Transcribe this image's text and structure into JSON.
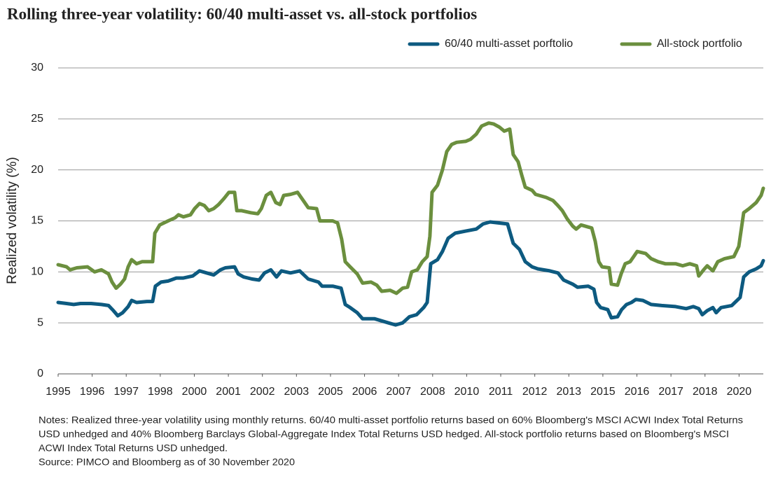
{
  "chart_data": {
    "type": "line",
    "title": "Rolling three-year volatility: 60/40 multi-asset  vs. all-stock portfolios",
    "y_label": "Realized volatility (%)",
    "notes": [
      "Notes: Realized three-year volatility using monthly returns. 60/40 multi-asset portfolio returns  based on 60% Bloomberg's MSCI ACWI Index Total Returns",
      "USD unhedged and 40% Bloomberg Barclays Global-Aggregate Index Total Returns USD hedged.  All-stock portfolio returns based on Bloomberg's MSCI",
      "ACWI Index Total Returns USD unhedged."
    ],
    "source": "Source: PIMCO and Bloomberg as of 30 November 2020",
    "xlim": [
      1995,
      2020.89
    ],
    "xticks": [
      1995,
      {
        "value": 1996.25,
        "label": "1996"
      },
      {
        "value": 1997.5,
        "label": "1997"
      },
      {
        "value": 1998.75,
        "label": "1998"
      },
      2000,
      {
        "value": 2001.25,
        "label": "2001"
      },
      {
        "value": 2002.5,
        "label": "2002"
      },
      {
        "value": 2003.75,
        "label": "2003"
      },
      2005,
      {
        "value": 2006.25,
        "label": "2006"
      },
      {
        "value": 2007.5,
        "label": "2007"
      },
      {
        "value": 2008.75,
        "label": "2008"
      },
      2010,
      {
        "value": 2011.25,
        "label": "2011"
      },
      {
        "value": 2012.5,
        "label": "2012"
      },
      {
        "value": 2013.75,
        "label": "2013"
      },
      2015,
      {
        "value": 2016.25,
        "label": "2016"
      },
      {
        "value": 2017.5,
        "label": "2017"
      },
      {
        "value": 2018.75,
        "label": "2018"
      },
      2020
    ],
    "ylim": [
      0,
      30
    ],
    "yticks": [
      0,
      5,
      10,
      15,
      20,
      25,
      30
    ],
    "grid": true,
    "legend": "top-right",
    "series": [
      {
        "name": "60/40 multi-asset porftolio",
        "color": "#0d5a80",
        "x": [
          1995.0,
          1995.31,
          1995.57,
          1995.82,
          1996.21,
          1996.59,
          1996.85,
          1997.03,
          1997.19,
          1997.37,
          1997.57,
          1997.7,
          1997.88,
          1998.26,
          1998.47,
          1998.57,
          1998.78,
          1999.04,
          1999.34,
          1999.6,
          1999.94,
          2000.19,
          2000.45,
          2000.71,
          2000.96,
          2001.14,
          2001.48,
          2001.61,
          2001.81,
          2002.12,
          2002.38,
          2002.58,
          2002.81,
          2003.02,
          2003.2,
          2003.53,
          2003.87,
          2004.18,
          2004.56,
          2004.69,
          2005.08,
          2005.39,
          2005.54,
          2005.72,
          2005.98,
          2006.18,
          2006.62,
          2006.88,
          2007.13,
          2007.39,
          2007.65,
          2007.9,
          2008.16,
          2008.42,
          2008.55,
          2008.68,
          2008.93,
          2009.11,
          2009.32,
          2009.58,
          2009.96,
          2010.35,
          2010.6,
          2010.86,
          2011.17,
          2011.5,
          2011.71,
          2011.94,
          2012.15,
          2012.4,
          2012.61,
          2013.05,
          2013.35,
          2013.56,
          2013.89,
          2014.07,
          2014.46,
          2014.67,
          2014.77,
          2014.92,
          2015.18,
          2015.31,
          2015.54,
          2015.69,
          2015.87,
          2016.05,
          2016.21,
          2016.47,
          2016.77,
          2017.16,
          2017.67,
          2018.06,
          2018.32,
          2018.52,
          2018.65,
          2018.83,
          2019.04,
          2019.16,
          2019.34,
          2019.73,
          2020.04,
          2020.17,
          2020.37,
          2020.63,
          2020.81,
          2020.89
        ],
        "values": [
          7.0,
          6.9,
          6.8,
          6.9,
          6.9,
          6.8,
          6.7,
          6.2,
          5.7,
          6.0,
          6.6,
          7.2,
          7.0,
          7.1,
          7.1,
          8.6,
          9.0,
          9.1,
          9.4,
          9.4,
          9.6,
          10.1,
          9.9,
          9.7,
          10.2,
          10.4,
          10.5,
          9.8,
          9.5,
          9.3,
          9.2,
          9.9,
          10.2,
          9.5,
          10.1,
          9.9,
          10.1,
          9.3,
          9.0,
          8.6,
          8.6,
          8.4,
          6.8,
          6.5,
          6.0,
          5.4,
          5.4,
          5.2,
          5.0,
          4.8,
          5.0,
          5.6,
          5.8,
          6.5,
          7.0,
          10.8,
          11.2,
          12.0,
          13.3,
          13.8,
          14.0,
          14.2,
          14.7,
          14.9,
          14.8,
          14.7,
          12.8,
          12.2,
          11.0,
          10.5,
          10.3,
          10.1,
          9.9,
          9.2,
          8.8,
          8.5,
          8.6,
          8.3,
          7.0,
          6.5,
          6.3,
          5.5,
          5.6,
          6.3,
          6.8,
          7.0,
          7.3,
          7.2,
          6.8,
          6.7,
          6.6,
          6.4,
          6.6,
          6.4,
          5.8,
          6.2,
          6.5,
          6.0,
          6.5,
          6.7,
          7.5,
          9.5,
          10.0,
          10.3,
          10.6,
          11.1
        ]
      },
      {
        "name": "All-stock portfolio",
        "color": "#6b8f3e",
        "x": [
          1995.0,
          1995.31,
          1995.44,
          1995.69,
          1996.08,
          1996.34,
          1996.59,
          1996.85,
          1996.98,
          1997.13,
          1997.29,
          1997.44,
          1997.57,
          1997.7,
          1997.88,
          1998.08,
          1998.34,
          1998.47,
          1998.55,
          1998.73,
          1999.04,
          1999.29,
          1999.42,
          1999.6,
          1999.86,
          2000.01,
          2000.19,
          2000.37,
          2000.53,
          2000.71,
          2000.89,
          2001.09,
          2001.27,
          2001.48,
          2001.56,
          2001.74,
          2002.07,
          2002.33,
          2002.46,
          2002.64,
          2002.81,
          2002.99,
          2003.15,
          2003.28,
          2003.53,
          2003.79,
          2004.0,
          2004.18,
          2004.49,
          2004.61,
          2004.85,
          2005.08,
          2005.26,
          2005.41,
          2005.54,
          2005.72,
          2005.98,
          2006.18,
          2006.49,
          2006.7,
          2006.88,
          2007.19,
          2007.42,
          2007.65,
          2007.83,
          2007.98,
          2008.19,
          2008.37,
          2008.55,
          2008.65,
          2008.73,
          2008.93,
          2009.11,
          2009.27,
          2009.45,
          2009.63,
          2009.96,
          2010.14,
          2010.35,
          2010.55,
          2010.81,
          2010.99,
          2011.2,
          2011.38,
          2011.58,
          2011.71,
          2011.89,
          2012.02,
          2012.15,
          2012.4,
          2012.53,
          2012.92,
          2013.17,
          2013.35,
          2013.51,
          2013.69,
          2013.89,
          2014.02,
          2014.2,
          2014.59,
          2014.72,
          2014.85,
          2014.97,
          2015.23,
          2015.31,
          2015.54,
          2015.67,
          2015.82,
          2016.0,
          2016.13,
          2016.26,
          2016.57,
          2016.77,
          2017.03,
          2017.29,
          2017.67,
          2017.93,
          2018.19,
          2018.44,
          2018.52,
          2018.7,
          2018.83,
          2019.04,
          2019.22,
          2019.47,
          2019.81,
          2019.99,
          2020.17,
          2020.37,
          2020.63,
          2020.81,
          2020.89
        ],
        "values": [
          10.7,
          10.5,
          10.2,
          10.4,
          10.5,
          10.0,
          10.2,
          9.8,
          9.0,
          8.4,
          8.8,
          9.3,
          10.5,
          11.2,
          10.8,
          11.0,
          11.0,
          11.0,
          13.8,
          14.6,
          15.0,
          15.3,
          15.6,
          15.4,
          15.6,
          16.2,
          16.7,
          16.5,
          16.0,
          16.2,
          16.6,
          17.2,
          17.8,
          17.8,
          16.0,
          16.0,
          15.8,
          15.7,
          16.2,
          17.5,
          17.8,
          16.8,
          16.6,
          17.5,
          17.6,
          17.8,
          17.0,
          16.3,
          16.2,
          15.0,
          15.0,
          15.0,
          14.8,
          13.2,
          11.0,
          10.5,
          9.8,
          8.9,
          9.0,
          8.7,
          8.1,
          8.2,
          7.9,
          8.4,
          8.5,
          10.0,
          10.2,
          11.0,
          11.5,
          13.5,
          17.8,
          18.5,
          20.0,
          21.8,
          22.5,
          22.7,
          22.8,
          23.0,
          23.5,
          24.3,
          24.6,
          24.5,
          24.2,
          23.8,
          24.0,
          21.5,
          20.8,
          19.5,
          18.3,
          18.0,
          17.6,
          17.3,
          17.0,
          16.5,
          16.0,
          15.2,
          14.5,
          14.2,
          14.6,
          14.3,
          13.0,
          11.0,
          10.5,
          10.4,
          8.8,
          8.7,
          9.8,
          10.8,
          11.0,
          11.5,
          12.0,
          11.8,
          11.3,
          11.0,
          10.8,
          10.8,
          10.6,
          10.8,
          10.6,
          9.6,
          10.2,
          10.6,
          10.1,
          11.0,
          11.3,
          11.5,
          12.5,
          15.8,
          16.2,
          16.8,
          17.5,
          18.2
        ]
      }
    ]
  }
}
